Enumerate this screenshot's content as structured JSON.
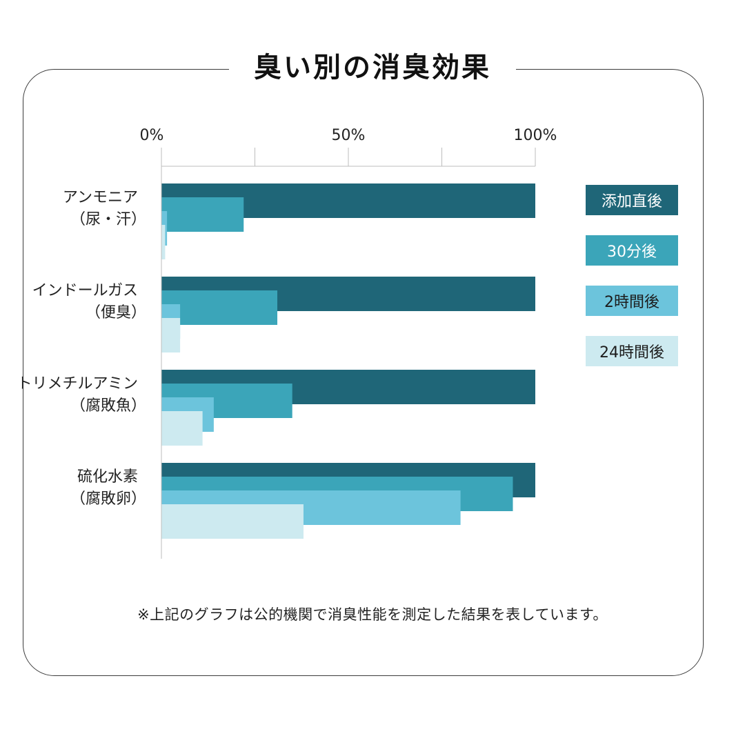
{
  "title": "臭い別の消臭効果",
  "footnote": "※上記のグラフは公的機関で消臭性能を測定した結果を表しています。",
  "colors": {
    "series1": "#1f6678",
    "series2": "#3ba5b9",
    "series3": "#6cc4dc",
    "series4": "#cdeaf0"
  },
  "chart_data": {
    "type": "bar",
    "orientation": "horizontal",
    "categories": [
      [
        "アンモニア",
        "（尿・汗）"
      ],
      [
        "インドールガス",
        "（便臭）"
      ],
      [
        "トリメチルアミン",
        "（腐敗魚）"
      ],
      [
        "硫化水素",
        "（腐敗卵）"
      ]
    ],
    "series": [
      {
        "name": "添加直後",
        "values": [
          100,
          100,
          100,
          100
        ]
      },
      {
        "name": "30分後",
        "values": [
          22,
          31,
          35,
          94
        ]
      },
      {
        "name": "2時間後",
        "values": [
          1.5,
          5,
          14,
          80
        ]
      },
      {
        "name": "24時間後",
        "values": [
          1,
          5,
          11,
          38
        ]
      }
    ],
    "xlim": [
      0,
      100
    ],
    "xticks": [
      0,
      25,
      50,
      75,
      100
    ],
    "xtick_labels": {
      "0": "0%",
      "50": "50%",
      "100": "100%"
    },
    "legend_position": "right",
    "grid": true
  }
}
